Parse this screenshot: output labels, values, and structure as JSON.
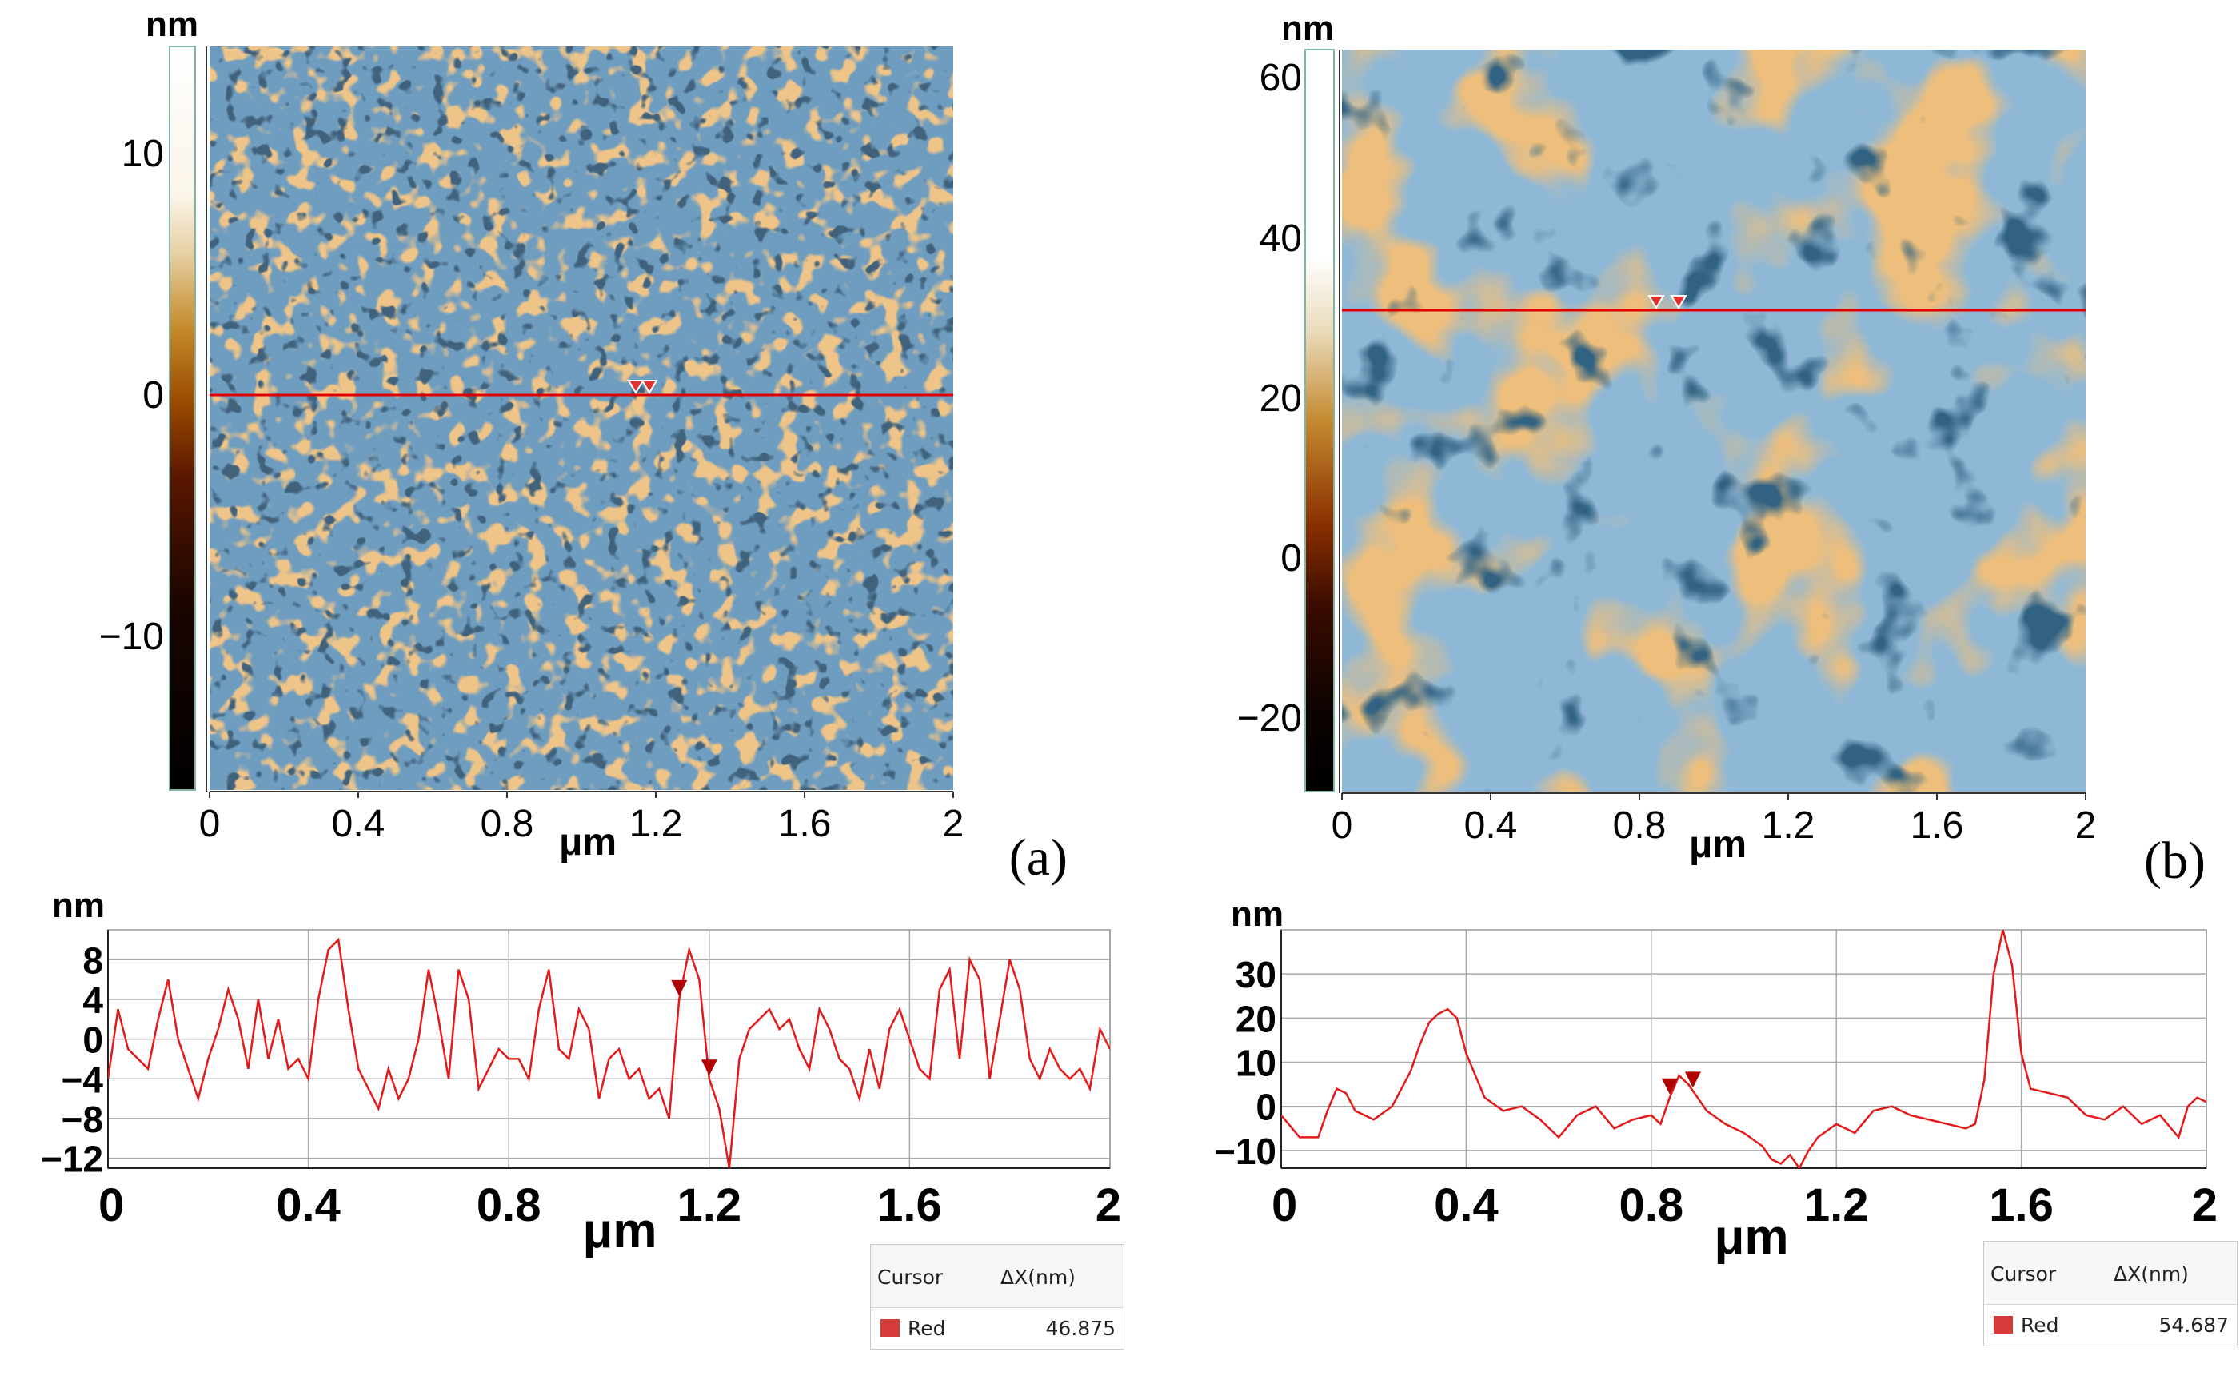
{
  "chart_data": [
    {
      "id": "a_image",
      "type": "heatmap",
      "title": "",
      "panel_label": "(a)",
      "z_unit_label": "nm",
      "colorbar_ticks": [
        "10",
        "0",
        "−10"
      ],
      "colorbar_range": [
        -16.5,
        14.5
      ],
      "x_ticks": [
        "0",
        "0.4",
        "0.8",
        "1.2",
        "1.6",
        "2"
      ],
      "xlabel": "μm",
      "xlim": [
        0,
        2
      ],
      "texture": "fine grains",
      "profile_line_height_nm": 0,
      "markers_x_um": [
        1.14,
        1.18
      ]
    },
    {
      "id": "b_image",
      "type": "heatmap",
      "title": "",
      "panel_label": "(b)",
      "z_unit_label": "nm",
      "colorbar_ticks": [
        "60",
        "40",
        "20",
        "0",
        "−20"
      ],
      "colorbar_range": [
        -30,
        62
      ],
      "x_ticks": [
        "0",
        "0.4",
        "0.8",
        "1.2",
        "1.6",
        "2"
      ],
      "xlabel": "μm",
      "xlim": [
        0,
        2
      ],
      "texture": "large domains",
      "profile_line_height_nm": 30,
      "markers_x_um": [
        0.84,
        0.9
      ]
    },
    {
      "id": "a_profile",
      "type": "line",
      "title": "",
      "ylabel": "nm",
      "xlabel": "μm",
      "xlim": [
        0,
        2
      ],
      "ylim": [
        -13,
        11
      ],
      "y_ticks": [
        "8",
        "4",
        "0",
        "−4",
        "−8",
        "−12"
      ],
      "x_ticks": [
        "0",
        "0.4",
        "0.8",
        "1.2",
        "1.6",
        "2"
      ],
      "markers_x_um": [
        1.14,
        1.2
      ],
      "cursor_header": "Cursor",
      "cursor_delta_label": "ΔX(nm)",
      "cursor_name": "Red",
      "cursor_value": "46.875",
      "series": [
        {
          "name": "Red",
          "x": [
            0,
            0.02,
            0.04,
            0.06,
            0.08,
            0.1,
            0.12,
            0.14,
            0.16,
            0.18,
            0.2,
            0.22,
            0.24,
            0.26,
            0.28,
            0.3,
            0.32,
            0.34,
            0.36,
            0.38,
            0.4,
            0.42,
            0.44,
            0.46,
            0.48,
            0.5,
            0.52,
            0.54,
            0.56,
            0.58,
            0.6,
            0.62,
            0.64,
            0.66,
            0.68,
            0.7,
            0.72,
            0.74,
            0.76,
            0.78,
            0.8,
            0.82,
            0.84,
            0.86,
            0.88,
            0.9,
            0.92,
            0.94,
            0.96,
            0.98,
            1.0,
            1.02,
            1.04,
            1.06,
            1.08,
            1.1,
            1.12,
            1.14,
            1.16,
            1.18,
            1.2,
            1.22,
            1.24,
            1.26,
            1.28,
            1.3,
            1.32,
            1.34,
            1.36,
            1.38,
            1.4,
            1.42,
            1.44,
            1.46,
            1.48,
            1.5,
            1.52,
            1.54,
            1.56,
            1.58,
            1.6,
            1.62,
            1.64,
            1.66,
            1.68,
            1.7,
            1.72,
            1.74,
            1.76,
            1.78,
            1.8,
            1.82,
            1.84,
            1.86,
            1.88,
            1.9,
            1.92,
            1.94,
            1.96,
            1.98,
            2.0
          ],
          "y": [
            -4,
            3,
            -1,
            -2,
            -3,
            2,
            6,
            0,
            -3,
            -6,
            -2,
            1,
            5,
            2,
            -3,
            4,
            -2,
            2,
            -3,
            -2,
            -4,
            4,
            9,
            10,
            3,
            -3,
            -5,
            -7,
            -3,
            -6,
            -4,
            0,
            7,
            2,
            -4,
            7,
            4,
            -5,
            -3,
            -1,
            -2,
            -2,
            -4,
            3,
            7,
            -1,
            -2,
            3,
            1,
            -6,
            -2,
            -1,
            -4,
            -3,
            -6,
            -5,
            -8,
            4,
            9,
            6,
            -4,
            -7,
            -13,
            -2,
            1,
            2,
            3,
            1,
            2,
            -1,
            -3,
            3,
            1,
            -2,
            -3,
            -6,
            -1,
            -5,
            1,
            3,
            0,
            -3,
            -4,
            5,
            7,
            -2,
            8,
            6,
            -4,
            2,
            8,
            5,
            -2,
            -4,
            -1,
            -3,
            -4,
            -3,
            -5,
            1,
            -1
          ]
        }
      ]
    },
    {
      "id": "b_profile",
      "type": "line",
      "title": "",
      "ylabel": "nm",
      "xlabel": "μm",
      "xlim": [
        0,
        2
      ],
      "ylim": [
        -14,
        40
      ],
      "y_ticks": [
        "30",
        "20",
        "10",
        "0",
        "−10"
      ],
      "x_ticks": [
        "0",
        "0.4",
        "0.8",
        "1.2",
        "1.6",
        "2"
      ],
      "markers_x_um": [
        0.84,
        0.89
      ],
      "cursor_header": "Cursor",
      "cursor_delta_label": "ΔX(nm)",
      "cursor_name": "Red",
      "cursor_value": "54.687",
      "series": [
        {
          "name": "Red",
          "x": [
            0,
            0.04,
            0.08,
            0.1,
            0.12,
            0.14,
            0.16,
            0.2,
            0.24,
            0.28,
            0.3,
            0.32,
            0.34,
            0.36,
            0.38,
            0.4,
            0.44,
            0.48,
            0.52,
            0.56,
            0.6,
            0.64,
            0.68,
            0.72,
            0.76,
            0.8,
            0.82,
            0.84,
            0.86,
            0.88,
            0.9,
            0.92,
            0.96,
            1.0,
            1.04,
            1.06,
            1.08,
            1.1,
            1.12,
            1.14,
            1.16,
            1.2,
            1.24,
            1.28,
            1.32,
            1.36,
            1.4,
            1.44,
            1.48,
            1.5,
            1.52,
            1.54,
            1.56,
            1.58,
            1.6,
            1.62,
            1.66,
            1.7,
            1.74,
            1.78,
            1.82,
            1.86,
            1.9,
            1.94,
            1.96,
            1.98,
            2.0
          ],
          "y": [
            -2,
            -7,
            -7,
            -1,
            4,
            3,
            -1,
            -3,
            0,
            8,
            14,
            19,
            21,
            22,
            20,
            12,
            2,
            -1,
            0,
            -3,
            -7,
            -2,
            0,
            -5,
            -3,
            -2,
            -4,
            2,
            7,
            5,
            2,
            -1,
            -4,
            -6,
            -9,
            -12,
            -13,
            -11,
            -14,
            -10,
            -7,
            -4,
            -6,
            -1,
            0,
            -2,
            -3,
            -4,
            -5,
            -4,
            6,
            30,
            40,
            32,
            12,
            4,
            3,
            2,
            -2,
            -3,
            0,
            -4,
            -2,
            -7,
            0,
            2,
            1
          ]
        }
      ]
    }
  ]
}
